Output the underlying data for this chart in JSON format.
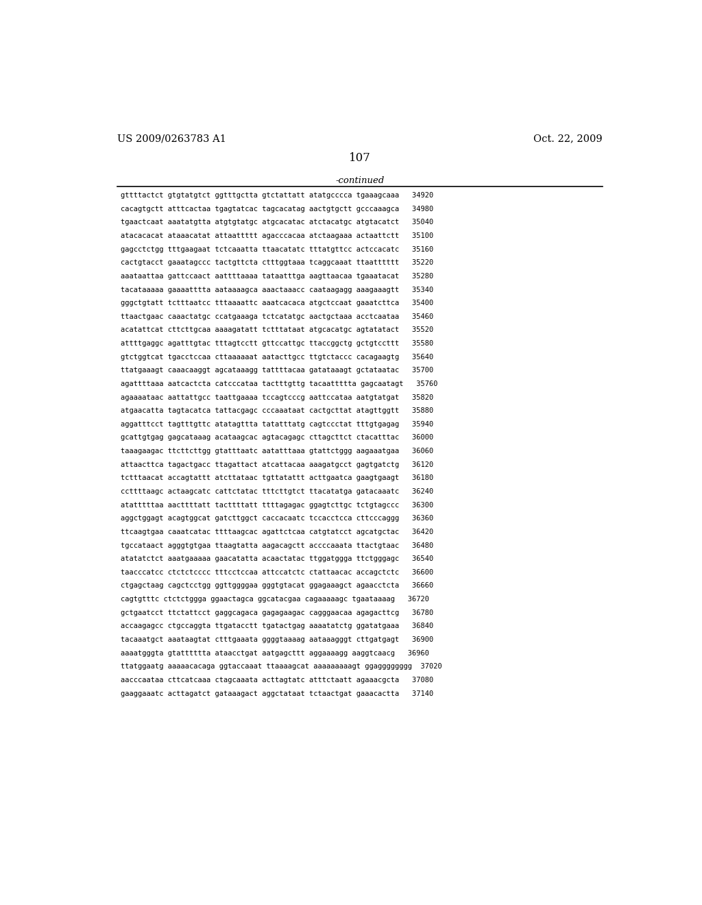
{
  "left_header": "US 2009/0263783 A1",
  "right_header": "Oct. 22, 2009",
  "page_number": "107",
  "continued_label": "-continued",
  "background_color": "#ffffff",
  "text_color": "#000000",
  "sequence_lines": [
    "gttttactct gtgtatgtct ggtttgctta gtctattatt atatgcccca tgaaagcaaa   34920",
    "cacagtgctt atttcactaa tgagtatcac tagcacatag aactgtgctt gcccaaagca   34980",
    "tgaactcaat aaatatgtta atgtgtatgc atgcacatac atctacatgc atgtacatct   35040",
    "atacacacat ataaacatat attaattttt agacccacaa atctaagaaa actaattctt   35100",
    "gagcctctgg tttgaagaat tctcaaatta ttaacatatc tttatgttcc actccacatc   35160",
    "cactgtacct gaaatagccc tactgttcta ctttggtaaa tcaggcaaat ttaatttttt   35220",
    "aaataattaa gattccaact aattttaaaa tataatttga aagttaacaa tgaaatacat   35280",
    "tacataaaaa gaaaatttta aataaaagca aaactaaacc caataagagg aaagaaagtt   35340",
    "gggctgtatt tctttaatcc tttaaaattc aaatcacaca atgctccaat gaaatcttca   35400",
    "ttaactgaac caaactatgc ccatgaaaga tctcatatgc aactgctaaa acctcaataa   35460",
    "acatattcat cttcttgcaa aaaagatatt tctttataat atgcacatgc agtatatact   35520",
    "attttgaggc agatttgtac tttagtcctt gttccattgc ttaccggctg gctgtccttt   35580",
    "gtctggtcat tgacctccaa cttaaaaaat aatacttgcc ttgtctaccc cacagaagtg   35640",
    "ttatgaaagt caaacaaggt agcataaagg tattttacaa gatataaagt gctataatac   35700",
    "agattttaaa aatcactcta catcccataa tactttgttg tacaattttta gagcaatagt   35760",
    "agaaaataac aattattgcc taattgaaaa tccagtcccg aattccataa aatgtatgat   35820",
    "atgaacatta tagtacatca tattacgagc cccaaataat cactgcttat atagttggtt   35880",
    "aggatttcct tagtttgttc atatagttta tatatttatg cagtccctat tttgtgagag   35940",
    "gcattgtgag gagcataaag acataagcac agtacagagc cttagcttct ctacatttac   36000",
    "taaagaagac ttcttcttgg gtatttaatc aatatttaaa gtattctggg aagaaatgaa   36060",
    "attaacttca tagactgacc ttagattact atcattacaa aaagatgcct gagtgatctg   36120",
    "tctttaacat accagtattt atcttataac tgttatattt acttgaatca gaagtgaagt   36180",
    "ccttttaagc actaagcatc cattctatac tttcttgtct ttacatatga gatacaaatc   36240",
    "atatttttaa aacttttatt tacttttatt ttttagagac ggagtcttgc tctgtagccc   36300",
    "aggctggagt acagtggcat gatcttggct caccacaatc tccacctcca cttcccaggg   36360",
    "ttcaagtgaa caaatcatac ttttaagcac agattctcaa catgtatcct agcatgctac   36420",
    "tgccataact agggtgtgaa ttaagtatta aagacagctt accccaaata ttactgtaac   36480",
    "atatatctct aaatgaaaaa gaacatatta acaactatac ttggatggga ttctgggagc   36540",
    "taacccatcc ctctctcccc tttcctccaa attccatctc ctattaacac accagctctc   36600",
    "ctgagctaag cagctcctgg ggttggggaa gggtgtacat ggagaaagct agaacctcta   36660",
    "cagtgtttc ctctctggga ggaactagca ggcatacgaa cagaaaaagc tgaataaaag   36720",
    "gctgaatcct ttctattcct gaggcagaca gagagaagac cagggaacaa agagacttcg   36780",
    "accaagagcc ctgccaggta ttgatacctt tgatactgag aaaatatctg ggatatgaaa   36840",
    "tacaaatgct aaataagtat ctttgaaata ggggtaaaag aataaagggt cttgatgagt   36900",
    "aaaatgggta gtatttttta ataacctgat aatgagcttt aggaaaagg aaggtcaacg   36960",
    "ttatggaatg aaaaacacaga ggtaccaaat ttaaaagcat aaaaaaaaagt ggagggggggg  37020",
    "aacccaataa cttcatcaaa ctagcaaata acttagtatc atttctaatt agaaacgcta   37080",
    "gaaggaaatc acttagatct gataaagact aggctataat tctaactgat gaaacactta   37140"
  ]
}
